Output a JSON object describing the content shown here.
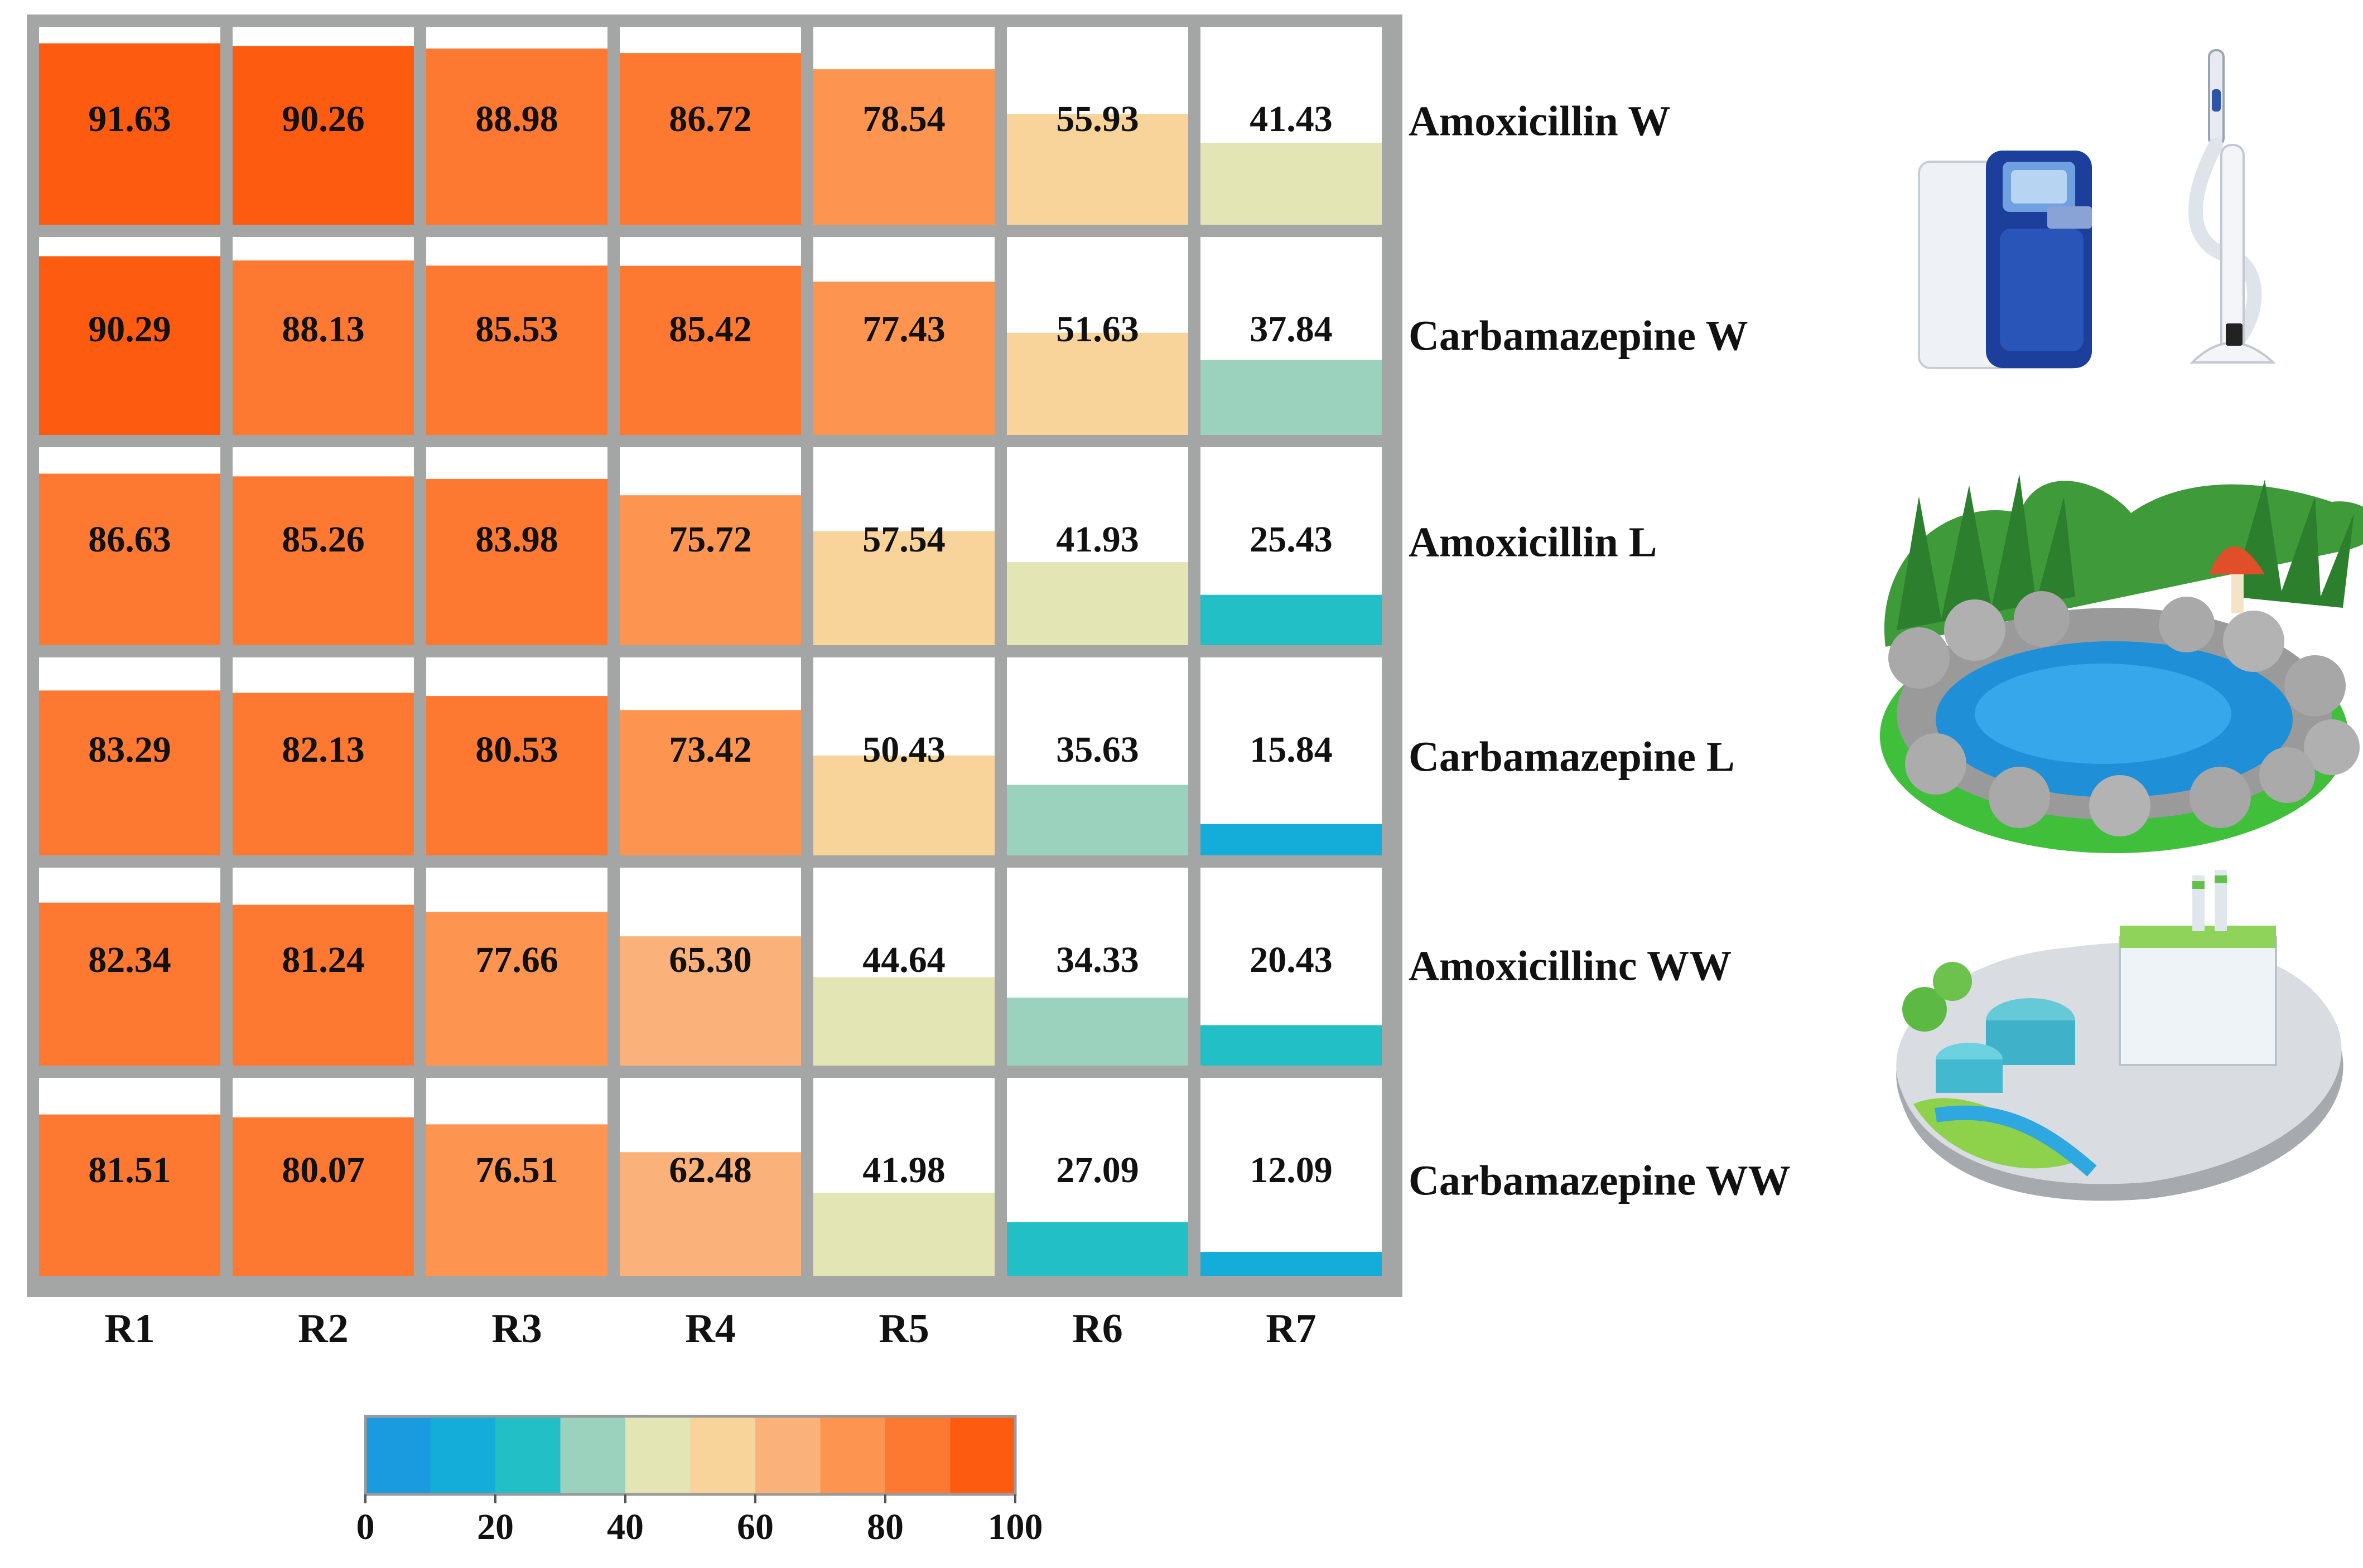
{
  "chart_data": {
    "type": "heatmap",
    "columns": [
      "R1",
      "R2",
      "R3",
      "R4",
      "R5",
      "R6",
      "R7"
    ],
    "rows": [
      "Amoxicillin  W",
      "Carbamazepine   W",
      "Amoxicillin L",
      "Carbamazepine   L",
      "Amoxicillinc WW",
      "Carbamazepine  WW"
    ],
    "values": [
      [
        91.63,
        90.26,
        88.98,
        86.72,
        78.54,
        55.93,
        41.43
      ],
      [
        90.29,
        88.13,
        85.53,
        85.42,
        77.43,
        51.63,
        37.84
      ],
      [
        86.63,
        85.26,
        83.98,
        75.72,
        57.54,
        41.93,
        25.43
      ],
      [
        83.29,
        82.13,
        80.53,
        73.42,
        50.43,
        35.63,
        15.84
      ],
      [
        82.34,
        81.24,
        77.66,
        65.3,
        44.64,
        34.33,
        20.43
      ],
      [
        81.51,
        80.07,
        76.51,
        62.48,
        41.98,
        27.09,
        12.09
      ]
    ],
    "value_labels": [
      [
        "91.63",
        "90.26",
        "88.98",
        "86.72",
        "78.54",
        "55.93",
        "41.43"
      ],
      [
        "90.29",
        "88.13",
        "85.53",
        "85.42",
        "77.43",
        "51.63",
        "37.84"
      ],
      [
        "86.63",
        "85.26",
        "83.98",
        "75.72",
        "57.54",
        "41.93",
        "25.43"
      ],
      [
        "83.29",
        "82.13",
        "80.53",
        "73.42",
        "50.43",
        "35.63",
        "15.84"
      ],
      [
        "82.34",
        "81.24",
        "77.66",
        "65.30",
        "44.64",
        "34.33",
        "20.43"
      ],
      [
        "81.51",
        "80.07",
        "76.51",
        "62.48",
        "41.98",
        "27.09",
        "12.09"
      ]
    ],
    "colorbar": {
      "ticks": [
        "0",
        "20",
        "40",
        "60",
        "80",
        "100"
      ],
      "range": [
        0,
        100
      ],
      "colors": [
        "#1a9be0",
        "#14acd8",
        "#22bfc6",
        "#9bd2bd",
        "#e3e6b4",
        "#f8d39a",
        "#fbb27a",
        "#fd9550",
        "#fd7830",
        "#fd5b10"
      ]
    },
    "grid_color": "#a4a6a6",
    "illustrations": [
      "water-purification-icon",
      "pond-icon",
      "factory-icon"
    ]
  }
}
